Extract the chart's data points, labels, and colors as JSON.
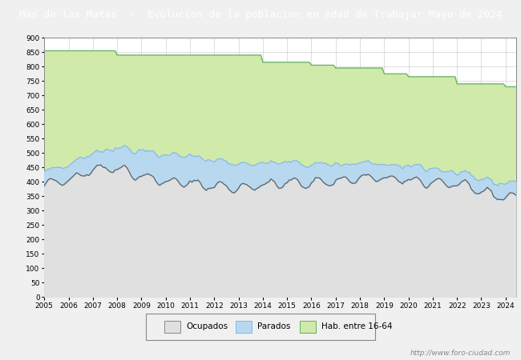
{
  "title": "Mas de las Matas  -  Evolucion de la poblacion en edad de Trabajar Mayo de 2024",
  "title_bg": "#4169b8",
  "title_color": "#ffffff",
  "ylim": [
    0,
    900
  ],
  "yticks": [
    0,
    50,
    100,
    150,
    200,
    250,
    300,
    350,
    400,
    450,
    500,
    550,
    600,
    650,
    700,
    750,
    800,
    850,
    900
  ],
  "color_hab": "#d0eaaa",
  "color_hab_line": "#60b060",
  "color_ocupados": "#e0e0e0",
  "color_ocupados_line": "#606060",
  "color_parados": "#b8d8f0",
  "color_parados_line": "#80b8e8",
  "watermark": "http://www.foro-ciudad.com",
  "bg_color": "#f0f0f0",
  "plot_bg": "#ffffff",
  "grid_color": "#d0d0d0",
  "hab_annual": [
    855,
    855,
    855,
    840,
    840,
    840,
    840,
    840,
    840,
    815,
    815,
    805,
    795,
    795,
    775,
    765,
    765,
    740,
    740,
    730,
    730
  ],
  "ocu_annual": [
    385,
    410,
    445,
    450,
    420,
    400,
    395,
    385,
    380,
    388,
    395,
    398,
    402,
    412,
    412,
    402,
    400,
    390,
    365,
    348,
    348
  ],
  "par_annual": [
    45,
    52,
    58,
    72,
    88,
    92,
    92,
    88,
    83,
    78,
    72,
    62,
    58,
    52,
    48,
    48,
    46,
    42,
    45,
    48,
    48
  ],
  "n_months": 234,
  "start_year": 2005,
  "xtick_years": [
    2005,
    2006,
    2007,
    2008,
    2009,
    2010,
    2011,
    2012,
    2013,
    2014,
    2015,
    2016,
    2017,
    2018,
    2019,
    2020,
    2021,
    2022,
    2023,
    2024
  ]
}
